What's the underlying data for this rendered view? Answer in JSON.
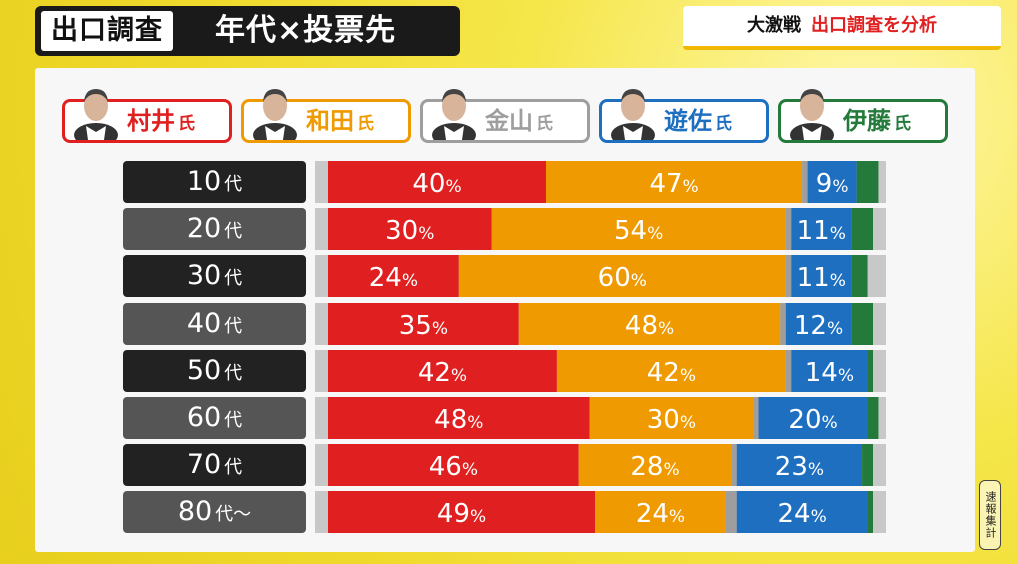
{
  "header": {
    "tag": "出口調査",
    "title": "年代×投票先",
    "badge_lead": "大激戦",
    "badge_text": "出口調査を分析"
  },
  "note": "速報集計",
  "colors": {
    "村井": "#e02020",
    "和田": "#ee9a00",
    "金山": "#9e9e9e",
    "遊佐": "#1f6fc0",
    "伊藤": "#237a3a"
  },
  "candidates": [
    {
      "name": "村井",
      "suffix": "氏",
      "color": "#e02020",
      "icon": "person-portrait-icon"
    },
    {
      "name": "和田",
      "suffix": "氏",
      "color": "#ee9a00",
      "icon": "person-portrait-icon"
    },
    {
      "name": "金山",
      "suffix": "氏",
      "color": "#9e9e9e",
      "icon": "person-portrait-icon"
    },
    {
      "name": "遊佐",
      "suffix": "氏",
      "color": "#1f6fc0",
      "icon": "person-portrait-icon"
    },
    {
      "name": "伊藤",
      "suffix": "氏",
      "color": "#237a3a",
      "icon": "person-portrait-icon"
    }
  ],
  "chart_data": {
    "type": "bar",
    "orientation": "horizontal",
    "stacked": true,
    "title": "年代×投票先",
    "categories": [
      {
        "num": "10",
        "unit": "代"
      },
      {
        "num": "20",
        "unit": "代"
      },
      {
        "num": "30",
        "unit": "代"
      },
      {
        "num": "40",
        "unit": "代"
      },
      {
        "num": "50",
        "unit": "代"
      },
      {
        "num": "60",
        "unit": "代"
      },
      {
        "num": "70",
        "unit": "代"
      },
      {
        "num": "80",
        "unit": "代～"
      }
    ],
    "series": [
      {
        "name": "村井氏",
        "values": [
          40,
          30,
          24,
          35,
          42,
          48,
          46,
          49
        ]
      },
      {
        "name": "和田氏",
        "values": [
          47,
          54,
          60,
          48,
          42,
          30,
          28,
          24
        ]
      },
      {
        "name": "金山氏",
        "values": [
          1,
          1,
          1,
          1,
          1,
          1,
          1,
          2
        ]
      },
      {
        "name": "遊佐氏",
        "values": [
          9,
          11,
          11,
          12,
          14,
          20,
          23,
          24
        ]
      },
      {
        "name": "伊藤氏",
        "values": [
          4,
          4,
          3,
          4,
          1,
          2,
          2,
          1
        ]
      }
    ],
    "value_suffix": "%",
    "labeled_series": [
      "村井氏",
      "和田氏",
      "遊佐氏"
    ],
    "xlim": [
      0,
      104
    ]
  }
}
